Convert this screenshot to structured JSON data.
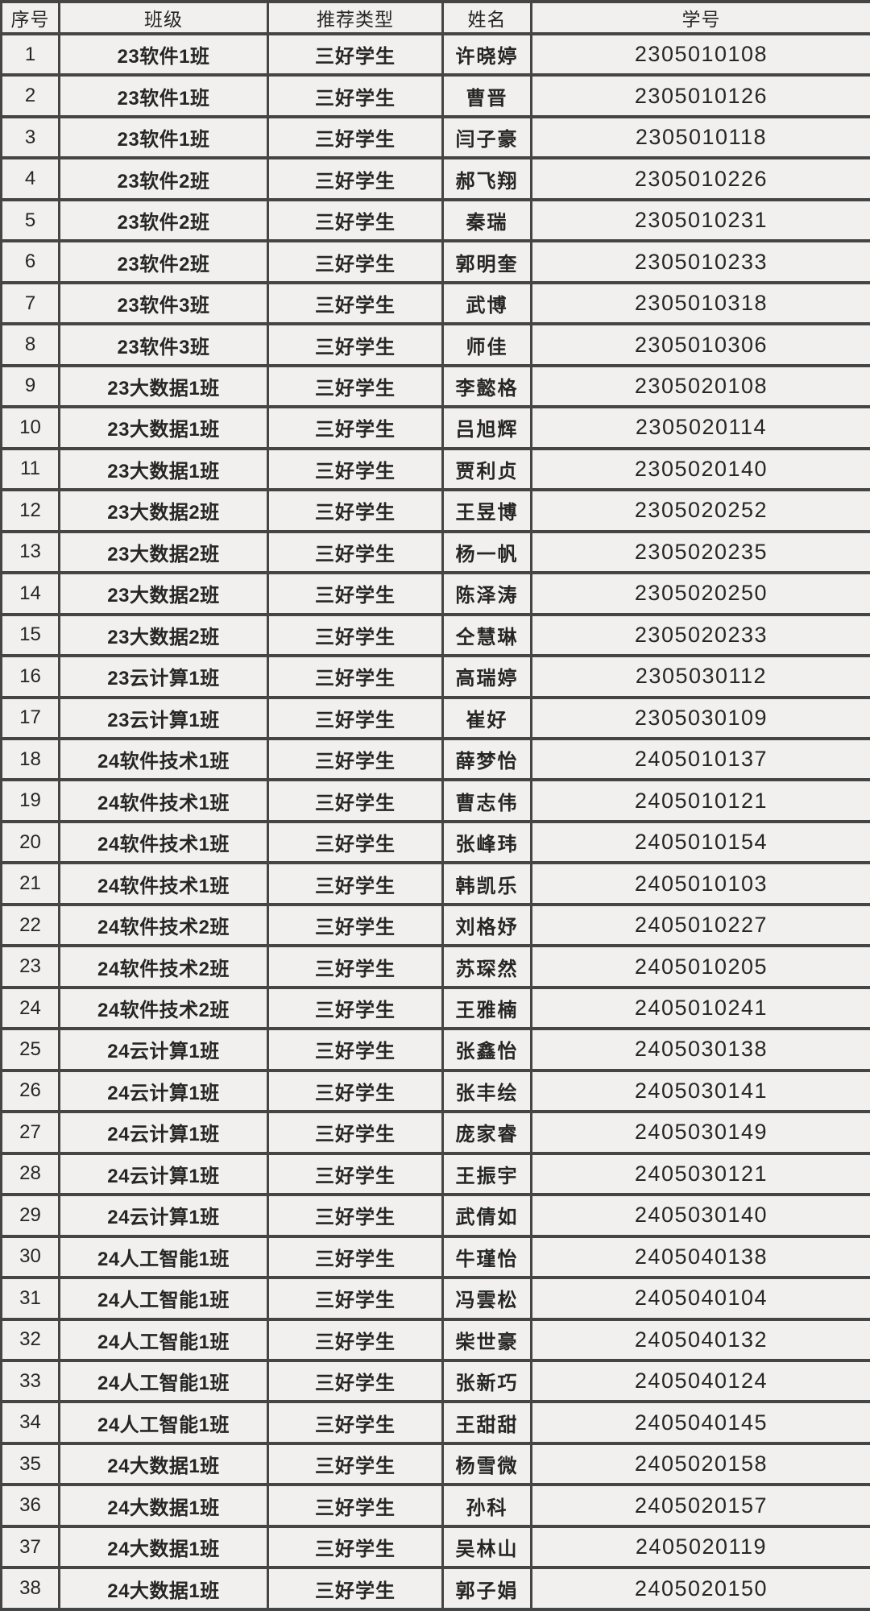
{
  "colors": {
    "cell_background": "#f1f0ee",
    "grid_border": "#454545",
    "text": "#262626"
  },
  "table": {
    "columns": [
      {
        "key": "index",
        "label": "序号"
      },
      {
        "key": "class",
        "label": "班级"
      },
      {
        "key": "type",
        "label": "推荐类型"
      },
      {
        "key": "name",
        "label": "姓名"
      },
      {
        "key": "student_id",
        "label": "学号"
      }
    ],
    "rows": [
      [
        "1",
        "23软件1班",
        "三好学生",
        "许晓婷",
        "2305010108"
      ],
      [
        "2",
        "23软件1班",
        "三好学生",
        "曹晋",
        "2305010126"
      ],
      [
        "3",
        "23软件1班",
        "三好学生",
        "闫子豪",
        "2305010118"
      ],
      [
        "4",
        "23软件2班",
        "三好学生",
        "郝飞翔",
        "2305010226"
      ],
      [
        "5",
        "23软件2班",
        "三好学生",
        "秦瑞",
        "2305010231"
      ],
      [
        "6",
        "23软件2班",
        "三好学生",
        "郭明奎",
        "2305010233"
      ],
      [
        "7",
        "23软件3班",
        "三好学生",
        "武博",
        "2305010318"
      ],
      [
        "8",
        "23软件3班",
        "三好学生",
        "师佳",
        "2305010306"
      ],
      [
        "9",
        "23大数据1班",
        "三好学生",
        "李懿格",
        "2305020108"
      ],
      [
        "10",
        "23大数据1班",
        "三好学生",
        "吕旭辉",
        "2305020114"
      ],
      [
        "11",
        "23大数据1班",
        "三好学生",
        "贾利贞",
        "2305020140"
      ],
      [
        "12",
        "23大数据2班",
        "三好学生",
        "王昱博",
        "2305020252"
      ],
      [
        "13",
        "23大数据2班",
        "三好学生",
        "杨一帆",
        "2305020235"
      ],
      [
        "14",
        "23大数据2班",
        "三好学生",
        "陈泽涛",
        "2305020250"
      ],
      [
        "15",
        "23大数据2班",
        "三好学生",
        "仝慧琳",
        "2305020233"
      ],
      [
        "16",
        "23云计算1班",
        "三好学生",
        "高瑞婷",
        "2305030112"
      ],
      [
        "17",
        "23云计算1班",
        "三好学生",
        "崔好",
        "2305030109"
      ],
      [
        "18",
        "24软件技术1班",
        "三好学生",
        "薛梦怡",
        "2405010137"
      ],
      [
        "19",
        "24软件技术1班",
        "三好学生",
        "曹志伟",
        "2405010121"
      ],
      [
        "20",
        "24软件技术1班",
        "三好学生",
        "张峰玮",
        "2405010154"
      ],
      [
        "21",
        "24软件技术1班",
        "三好学生",
        "韩凯乐",
        "2405010103"
      ],
      [
        "22",
        "24软件技术2班",
        "三好学生",
        "刘格妤",
        "2405010227"
      ],
      [
        "23",
        "24软件技术2班",
        "三好学生",
        "苏琛然",
        "2405010205"
      ],
      [
        "24",
        "24软件技术2班",
        "三好学生",
        "王雅楠",
        "2405010241"
      ],
      [
        "25",
        "24云计算1班",
        "三好学生",
        "张鑫怡",
        "2405030138"
      ],
      [
        "26",
        "24云计算1班",
        "三好学生",
        "张丰绘",
        "2405030141"
      ],
      [
        "27",
        "24云计算1班",
        "三好学生",
        "庞家睿",
        "2405030149"
      ],
      [
        "28",
        "24云计算1班",
        "三好学生",
        "王振宇",
        "2405030121"
      ],
      [
        "29",
        "24云计算1班",
        "三好学生",
        "武倩如",
        "2405030140"
      ],
      [
        "30",
        "24人工智能1班",
        "三好学生",
        "牛瑾怡",
        "2405040138"
      ],
      [
        "31",
        "24人工智能1班",
        "三好学生",
        "冯雲松",
        "2405040104"
      ],
      [
        "32",
        "24人工智能1班",
        "三好学生",
        "柴世豪",
        "2405040132"
      ],
      [
        "33",
        "24人工智能1班",
        "三好学生",
        "张新巧",
        "2405040124"
      ],
      [
        "34",
        "24人工智能1班",
        "三好学生",
        "王甜甜",
        "2405040145"
      ],
      [
        "35",
        "24大数据1班",
        "三好学生",
        "杨雪微",
        "2405020158"
      ],
      [
        "36",
        "24大数据1班",
        "三好学生",
        "孙科",
        "2405020157"
      ],
      [
        "37",
        "24大数据1班",
        "三好学生",
        "吴林山",
        "2405020119"
      ],
      [
        "38",
        "24大数据1班",
        "三好学生",
        "郭子娟",
        "2405020150"
      ]
    ]
  }
}
